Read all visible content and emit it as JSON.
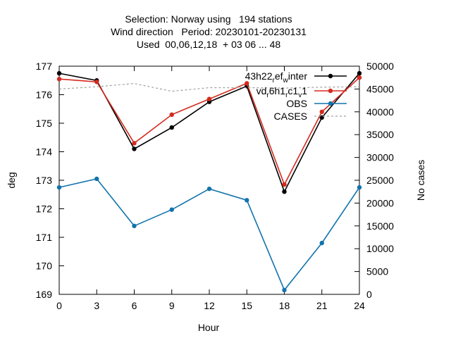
{
  "chart_data": {
    "type": "line",
    "title": [
      "Selection: Norway using   194 stations",
      "Wind direction   Period: 20230101-20230131",
      "Used  00,06,12,18  + 03 06 ... 48"
    ],
    "xlabel": "Hour",
    "ylabel": "deg",
    "y2label": "No cases",
    "x": [
      0,
      3,
      6,
      9,
      12,
      15,
      18,
      21,
      24
    ],
    "xlim": [
      0,
      24
    ],
    "ylim": [
      169,
      177
    ],
    "y2lim": [
      0,
      50000
    ],
    "xticks": [
      "0",
      "3",
      "6",
      "9",
      "12",
      "15",
      "18",
      "21",
      "24"
    ],
    "yticks": [
      "169",
      "170",
      "171",
      "172",
      "173",
      "174",
      "175",
      "176",
      "177"
    ],
    "y2ticks": [
      "0",
      "5000",
      "10000",
      "15000",
      "20000",
      "25000",
      "30000",
      "35000",
      "40000",
      "45000",
      "50000"
    ],
    "grid": false,
    "legend_position": "top-right",
    "series": [
      {
        "name": "43h22_ref_winter",
        "legend": [
          "43h22",
          "r",
          "ef",
          "w",
          "inter"
        ],
        "color": "#000000",
        "axis": "y",
        "dash": false,
        "marker": true,
        "values": [
          176.75,
          176.5,
          174.1,
          174.85,
          175.75,
          176.3,
          172.6,
          175.2,
          176.75
        ]
      },
      {
        "name": "vd_6h1_c1_1",
        "legend": [
          "vd",
          "r",
          "6h1",
          "r",
          "c1",
          "v",
          "1"
        ],
        "color": "#d42a1f",
        "axis": "y",
        "dash": false,
        "marker": true,
        "values": [
          176.55,
          176.45,
          174.3,
          175.3,
          175.85,
          176.4,
          172.85,
          175.4,
          176.6
        ]
      },
      {
        "name": "OBS",
        "color": "#1273ac",
        "axis": "y",
        "dash": false,
        "marker": true,
        "values": [
          172.75,
          173.05,
          171.4,
          171.97,
          172.7,
          172.3,
          169.15,
          170.8,
          172.75
        ]
      },
      {
        "name": "CASES",
        "color": "#a0a0a0",
        "axis": "y2",
        "dash": true,
        "marker": false,
        "values": [
          45000,
          45500,
          46200,
          44500,
          45300,
          45300,
          45200,
          45400,
          45500
        ]
      }
    ]
  }
}
